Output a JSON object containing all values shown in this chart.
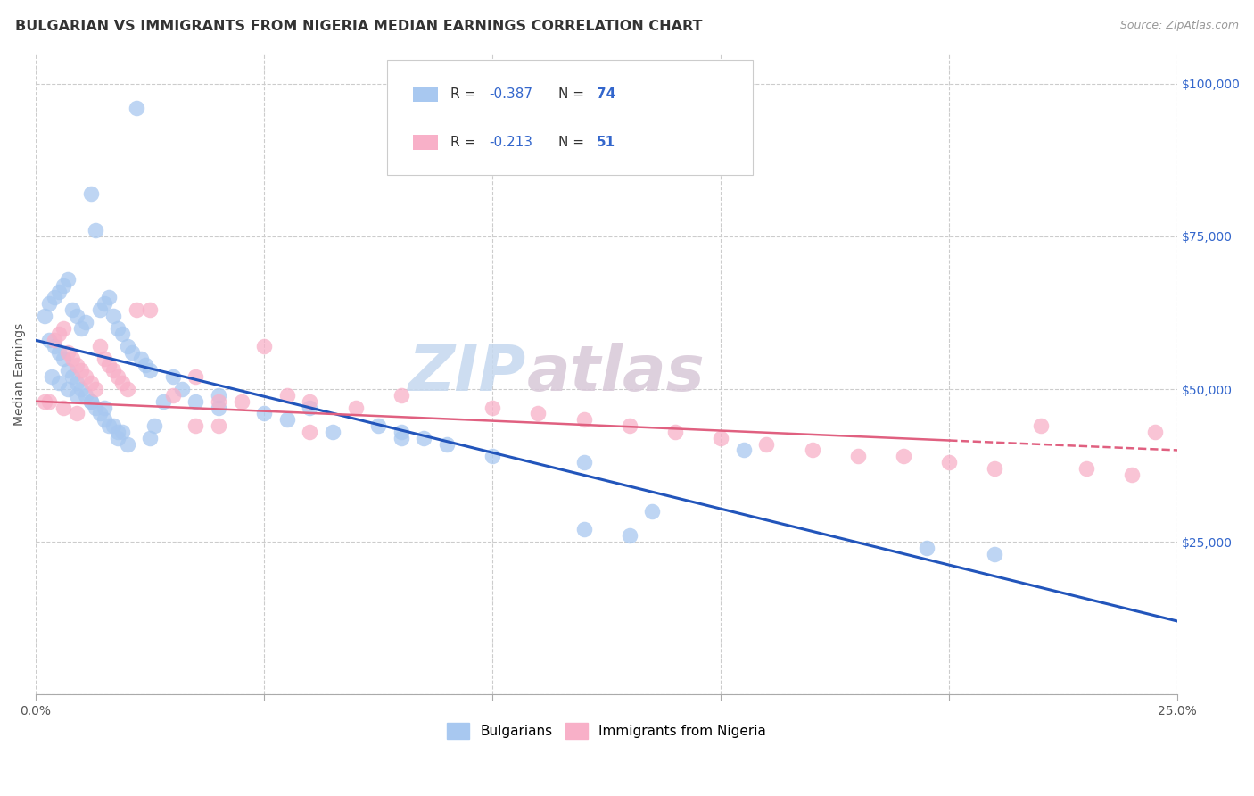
{
  "title": "BULGARIAN VS IMMIGRANTS FROM NIGERIA MEDIAN EARNINGS CORRELATION CHART",
  "source": "Source: ZipAtlas.com",
  "ylabel": "Median Earnings",
  "xlim": [
    0.0,
    0.25
  ],
  "ylim": [
    0,
    105000
  ],
  "xlabel_ticks_pos": [
    0.0,
    0.25
  ],
  "xlabel_ticks_labels": [
    "0.0%",
    "25.0%"
  ],
  "ylabel_vals": [
    0,
    25000,
    50000,
    75000,
    100000
  ],
  "ylabel_ticks": [
    "",
    "$25,000",
    "$50,000",
    "$75,000",
    "$100,000"
  ],
  "legend_blue_r": "-0.387",
  "legend_blue_n": "74",
  "legend_pink_r": "-0.213",
  "legend_pink_n": "51",
  "legend_blue_label": "Bulgarians",
  "legend_pink_label": "Immigrants from Nigeria",
  "blue_color": "#a8c8f0",
  "pink_color": "#f8b0c8",
  "blue_line_color": "#2255bb",
  "pink_line_color": "#e06080",
  "text_color_rn": "#3366cc",
  "watermark_zip": "ZIP",
  "watermark_atlas": "atlas",
  "title_fontsize": 11.5,
  "source_fontsize": 9,
  "axis_label_fontsize": 10,
  "tick_fontsize": 10,
  "legend_fontsize": 11,
  "watermark_fontsize": 52,
  "background_color": "#ffffff",
  "grid_color": "#cccccc",
  "right_tick_color": "#3366cc",
  "ylabel_color": "#555555",
  "blue_line_intercept": 58000,
  "blue_line_slope": -184000,
  "pink_line_intercept": 48000,
  "pink_line_slope": -32000,
  "blue_scatter_x": [
    0.022,
    0.012,
    0.013,
    0.002,
    0.003,
    0.004,
    0.005,
    0.006,
    0.007,
    0.008,
    0.009,
    0.01,
    0.011,
    0.014,
    0.015,
    0.016,
    0.017,
    0.018,
    0.019,
    0.02,
    0.021,
    0.023,
    0.024,
    0.025,
    0.003,
    0.004,
    0.005,
    0.006,
    0.007,
    0.008,
    0.009,
    0.01,
    0.011,
    0.012,
    0.013,
    0.014,
    0.015,
    0.016,
    0.017,
    0.018,
    0.0035,
    0.005,
    0.007,
    0.009,
    0.012,
    0.015,
    0.04,
    0.06,
    0.075,
    0.08,
    0.09,
    0.1,
    0.12,
    0.135,
    0.155,
    0.195,
    0.21,
    0.08,
    0.085,
    0.12,
    0.13,
    0.065,
    0.04,
    0.035,
    0.05,
    0.055,
    0.03,
    0.032,
    0.028,
    0.026,
    0.025,
    0.02,
    0.019,
    0.018
  ],
  "blue_scatter_y": [
    96000,
    82000,
    76000,
    62000,
    64000,
    65000,
    66000,
    67000,
    68000,
    63000,
    62000,
    60000,
    61000,
    63000,
    64000,
    65000,
    62000,
    60000,
    59000,
    57000,
    56000,
    55000,
    54000,
    53000,
    58000,
    57000,
    56000,
    55000,
    53000,
    52000,
    51000,
    50000,
    49000,
    48000,
    47000,
    46000,
    45000,
    44000,
    44000,
    43000,
    52000,
    51000,
    50000,
    49000,
    48000,
    47000,
    47000,
    47000,
    44000,
    42000,
    41000,
    39000,
    27000,
    30000,
    40000,
    24000,
    23000,
    43000,
    42000,
    38000,
    26000,
    43000,
    49000,
    48000,
    46000,
    45000,
    52000,
    50000,
    48000,
    44000,
    42000,
    41000,
    43000,
    42000
  ],
  "pink_scatter_x": [
    0.002,
    0.004,
    0.005,
    0.006,
    0.007,
    0.008,
    0.009,
    0.01,
    0.011,
    0.012,
    0.013,
    0.014,
    0.015,
    0.016,
    0.017,
    0.018,
    0.019,
    0.02,
    0.022,
    0.025,
    0.03,
    0.035,
    0.04,
    0.045,
    0.05,
    0.055,
    0.06,
    0.07,
    0.08,
    0.1,
    0.11,
    0.12,
    0.13,
    0.14,
    0.15,
    0.16,
    0.17,
    0.18,
    0.19,
    0.2,
    0.21,
    0.22,
    0.23,
    0.24,
    0.003,
    0.006,
    0.009,
    0.035,
    0.04,
    0.06,
    0.245
  ],
  "pink_scatter_y": [
    48000,
    58000,
    59000,
    60000,
    56000,
    55000,
    54000,
    53000,
    52000,
    51000,
    50000,
    57000,
    55000,
    54000,
    53000,
    52000,
    51000,
    50000,
    63000,
    63000,
    49000,
    52000,
    48000,
    48000,
    57000,
    49000,
    48000,
    47000,
    49000,
    47000,
    46000,
    45000,
    44000,
    43000,
    42000,
    41000,
    40000,
    39000,
    39000,
    38000,
    37000,
    44000,
    37000,
    36000,
    48000,
    47000,
    46000,
    44000,
    44000,
    43000,
    43000
  ]
}
